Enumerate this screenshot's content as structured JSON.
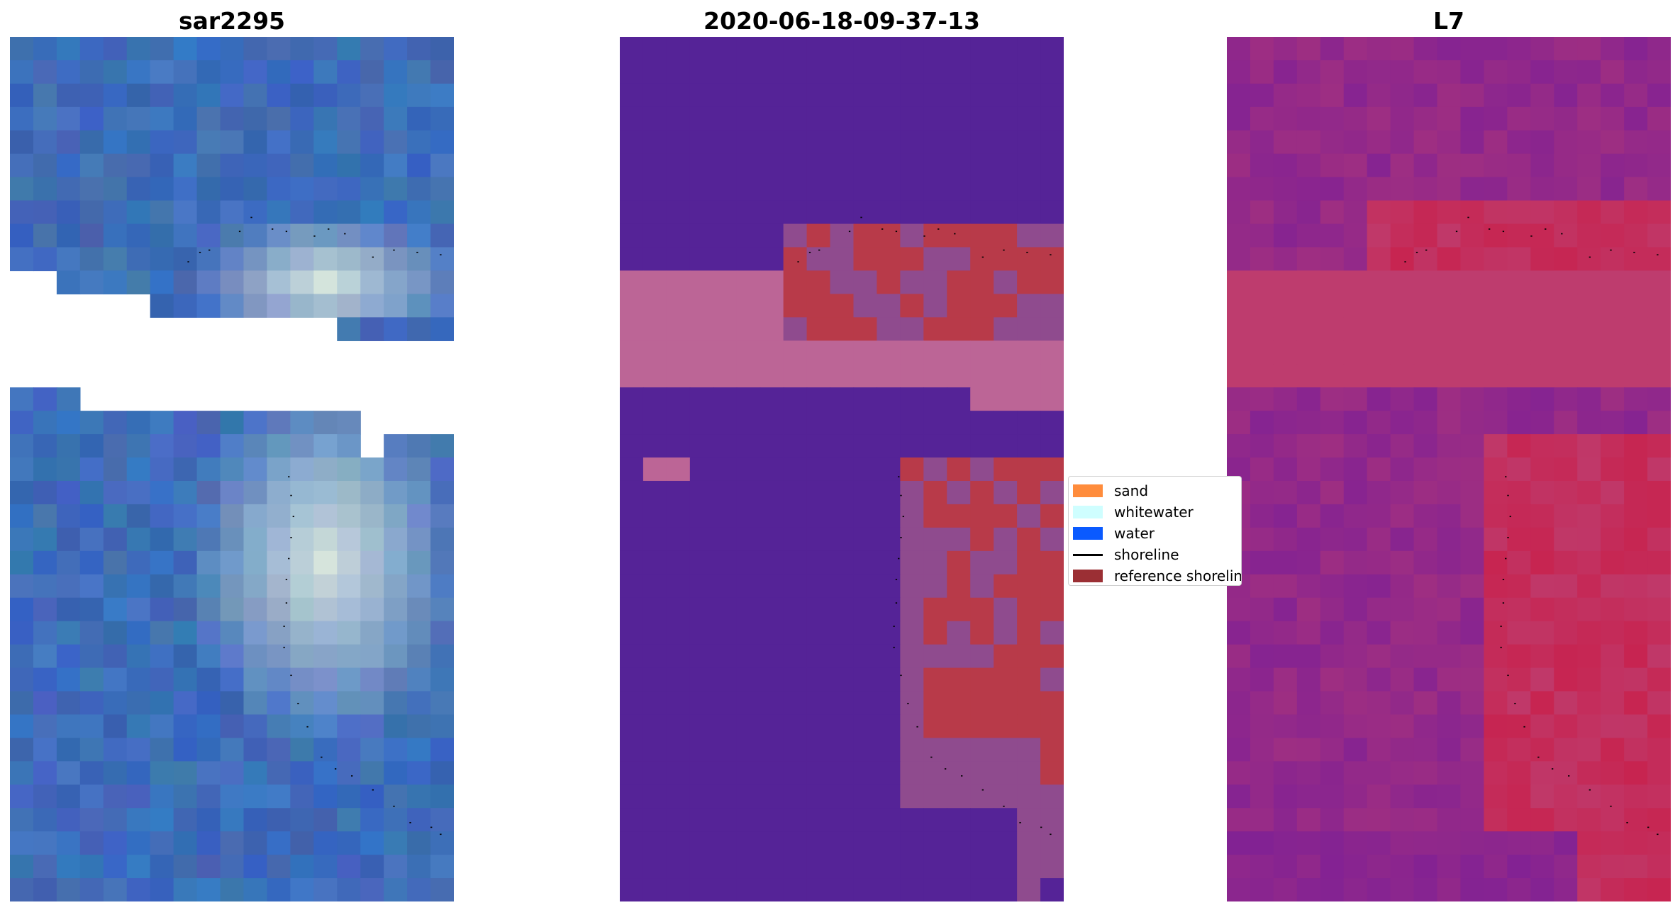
{
  "panels": [
    {
      "title": "sar2295",
      "colormap": "rgb"
    },
    {
      "title": "2020-06-18-09-37-13",
      "colormap": "classification"
    },
    {
      "title": "L7",
      "colormap": "plasma"
    }
  ],
  "legend": {
    "entries": [
      {
        "label": "sand",
        "color": "#ff8c3c",
        "kind": "patch"
      },
      {
        "label": "whitewater",
        "color": "#cffeff",
        "kind": "patch"
      },
      {
        "label": "water",
        "color": "#0a5aff",
        "kind": "patch"
      },
      {
        "label": "shoreline",
        "color": "#000000",
        "kind": "line"
      },
      {
        "label": "reference shoreline",
        "color": "#9b2f34",
        "kind": "patch"
      }
    ]
  },
  "colors": {
    "water_class": "#552397",
    "sand_class": "#bc6596",
    "sand_dark": "#b83a49",
    "mix": "#8f4b8e",
    "shoreline_points": "#000000"
  }
}
